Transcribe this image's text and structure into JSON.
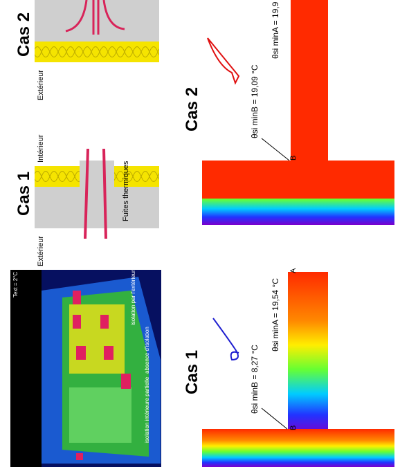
{
  "top": {
    "case2_label": "Cas 2",
    "case2_exterior": "Extérieur",
    "case1_label": "Cas 1",
    "case1_interior": "Intérieur",
    "case1_exterior": "Extérieur",
    "case1_leaks": "Fuites thermiques"
  },
  "photo": {
    "temperature": "Text = 2°C",
    "labels": [
      "isolation par l'extérieur",
      "absence d'isolation",
      "isolation intérieure partielle"
    ]
  },
  "simulations": [
    {
      "title": "Cas 2",
      "min_b": "θsi minB = 19,09 °C",
      "min_a": "θsi minA = 19,9",
      "point_b": "B"
    },
    {
      "title": "Cas 1",
      "min_b": "θsi minB = 8,27 °C",
      "min_a": "θsi minA = 19,54 °C",
      "point_a": "A",
      "point_b": "B"
    }
  ]
}
